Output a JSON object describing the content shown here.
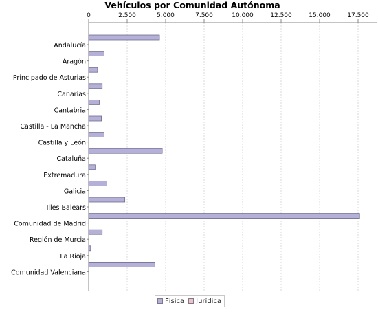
{
  "chart_data": {
    "type": "bar",
    "orientation": "horizontal",
    "title": "Vehículos por Comunidad Autónoma",
    "xlabel": "",
    "ylabel": "",
    "xlim": [
      0,
      18750
    ],
    "x_ticks": [
      0,
      2500,
      5000,
      7500,
      10000,
      12500,
      15000,
      17500
    ],
    "x_tick_labels": [
      "0",
      "2.500",
      "5.000",
      "7.500",
      "10.000",
      "12.500",
      "15.000",
      "17.500"
    ],
    "axis_position": "top",
    "grid": true,
    "categories": [
      "Andalucía",
      "Aragón",
      "Principado de Asturias",
      "Canarias",
      "Cantabria",
      "Castilla - La Mancha",
      "Castilla y León",
      "Cataluña",
      "Extremadura",
      "Galicia",
      "Illes Balears",
      "Comunidad de Madrid",
      "Región de Murcia",
      "La Rioja",
      "Comunidad Valenciana"
    ],
    "series": [
      {
        "name": "Física",
        "color": "#b4b0d8",
        "values": [
          4600,
          1000,
          580,
          880,
          700,
          830,
          1000,
          4780,
          420,
          1180,
          2350,
          17600,
          880,
          130,
          4300
        ]
      },
      {
        "name": "Jurídica",
        "color": "#f4c0c4",
        "values": [
          0,
          0,
          0,
          0,
          0,
          0,
          0,
          0,
          0,
          0,
          0,
          0,
          0,
          0,
          0
        ]
      }
    ],
    "legend_position": "bottom"
  }
}
